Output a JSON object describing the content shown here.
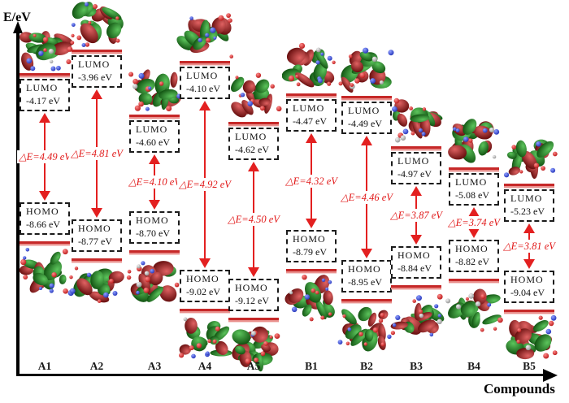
{
  "figure": {
    "y_axis_label": "E/eV",
    "x_axis_label": "Compounds",
    "accent_color": "#e32020",
    "level_color": "#c62828"
  },
  "chart_data": {
    "type": "energy-level",
    "categories": [
      "A1",
      "A2",
      "A3",
      "A4",
      "A5",
      "B1",
      "B2",
      "B3",
      "B4",
      "B5"
    ],
    "series": [
      {
        "name": "LUMO (eV)",
        "values": [
          -4.17,
          -3.96,
          -4.6,
          -4.1,
          -4.62,
          -4.47,
          -4.49,
          -4.97,
          -5.08,
          -5.23
        ]
      },
      {
        "name": "HOMO (eV)",
        "values": [
          -8.66,
          -8.77,
          -8.7,
          -9.02,
          -9.12,
          -8.79,
          -8.95,
          -8.84,
          -8.82,
          -9.04
        ]
      },
      {
        "name": "ΔE (eV)",
        "values": [
          4.49,
          4.81,
          4.1,
          4.92,
          4.5,
          4.32,
          4.46,
          3.87,
          3.74,
          3.81
        ]
      }
    ],
    "ylabel": "E/eV",
    "xlabel": "Compounds",
    "legend": "none",
    "grid": false
  },
  "compounds": [
    {
      "id": "A1",
      "lumo_title": "LUMO",
      "lumo_value": "-4.17 eV",
      "homo_title": "HOMO",
      "homo_value": "-8.66 eV",
      "gap_label": "△E=4.49 eV"
    },
    {
      "id": "A2",
      "lumo_title": "LUMO",
      "lumo_value": "-3.96 eV",
      "homo_title": "HOMO",
      "homo_value": "-8.77 eV",
      "gap_label": "△E=4.81 eV"
    },
    {
      "id": "A3",
      "lumo_title": "LUMO",
      "lumo_value": "-4.60 eV",
      "homo_title": "HOMO",
      "homo_value": "-8.70 eV",
      "gap_label": "△E=4.10 eV"
    },
    {
      "id": "A4",
      "lumo_title": "LUMO",
      "lumo_value": "-4.10 eV",
      "homo_title": "HOMO",
      "homo_value": "-9.02 eV",
      "gap_label": "△E=4.92 eV"
    },
    {
      "id": "A5",
      "lumo_title": "LUMO",
      "lumo_value": "-4.62 eV",
      "homo_title": "HOMO",
      "homo_value": "-9.12 eV",
      "gap_label": "△E=4.50 eV"
    },
    {
      "id": "B1",
      "lumo_title": "LUMO",
      "lumo_value": "-4.47 eV",
      "homo_title": "HOMO",
      "homo_value": "-8.79 eV",
      "gap_label": "△E=4.32 eV"
    },
    {
      "id": "B2",
      "lumo_title": "LUMO",
      "lumo_value": "-4.49 eV",
      "homo_title": "HOMO",
      "homo_value": "-8.95 eV",
      "gap_label": "△E=4.46 eV"
    },
    {
      "id": "B3",
      "lumo_title": "LUMO",
      "lumo_value": "-4.97 eV",
      "homo_title": "HOMO",
      "homo_value": "-8.84 eV",
      "gap_label": "△E=3.87 eV"
    },
    {
      "id": "B4",
      "lumo_title": "LUMO",
      "lumo_value": "-5.08 eV",
      "homo_title": "HOMO",
      "homo_value": "-8.82 eV",
      "gap_label": "△E=3.74 eV"
    },
    {
      "id": "B5",
      "lumo_title": "LUMO",
      "lumo_value": "-5.23 eV",
      "homo_title": "HOMO",
      "homo_value": "-9.04 eV",
      "gap_label": "△E=3.81 eV"
    }
  ]
}
